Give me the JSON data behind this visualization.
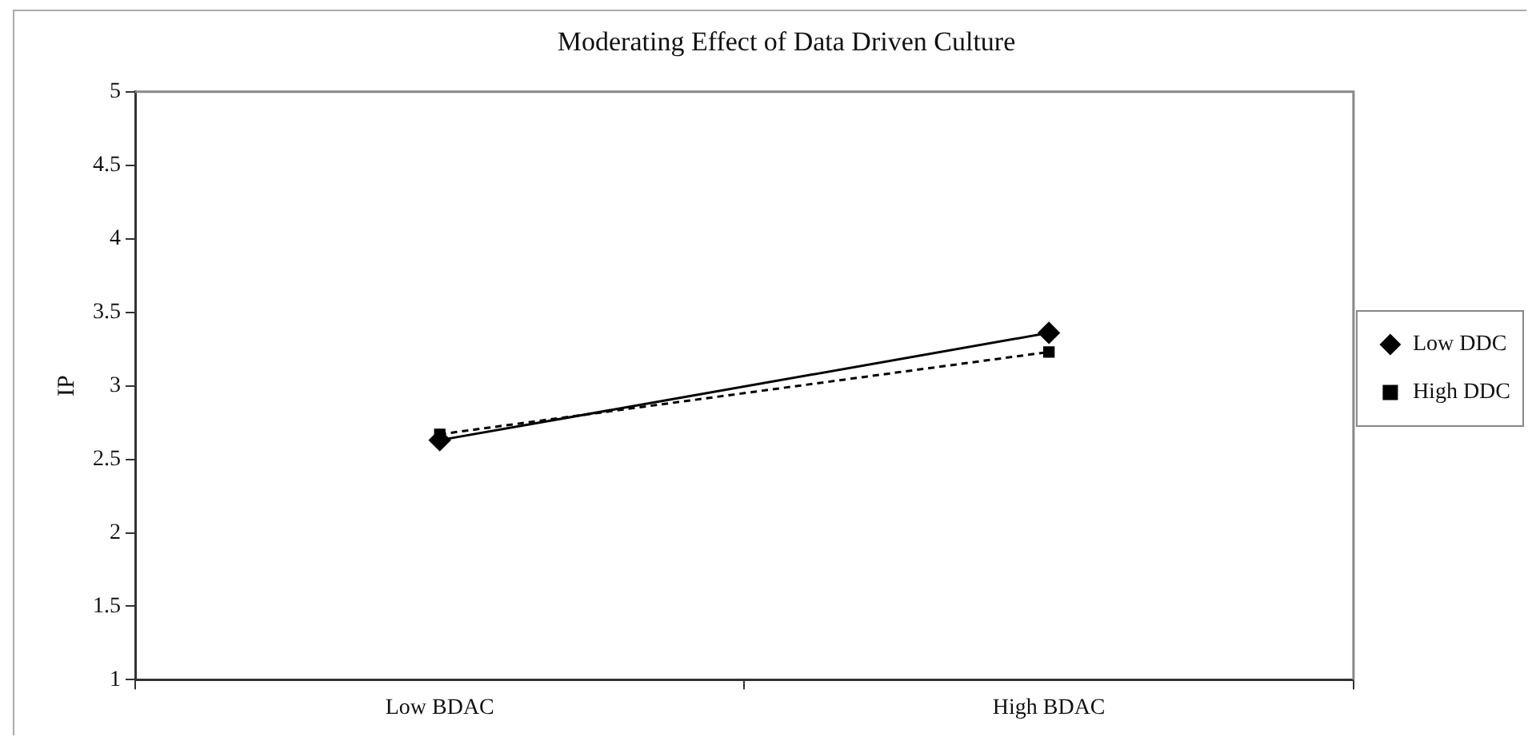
{
  "chart_data": {
    "type": "line",
    "title": "Moderating Effect of Data Driven Culture",
    "ylabel": "IP",
    "categories": [
      "Low BDAC",
      "High BDAC"
    ],
    "series": [
      {
        "name": "Low DDC",
        "color": "#000000",
        "values": [
          2.63,
          3.36
        ],
        "marker": "diamond",
        "line_style": "solid"
      },
      {
        "name": "High DDC",
        "color": "#000000",
        "values": [
          2.67,
          3.23
        ],
        "marker": "square",
        "line_style": "dashed"
      }
    ],
    "ylim": [
      1,
      5
    ],
    "yticks": [
      1,
      1.5,
      2,
      2.5,
      3,
      3.5,
      4,
      4.5,
      5
    ],
    "grid": false,
    "legend": "right"
  }
}
